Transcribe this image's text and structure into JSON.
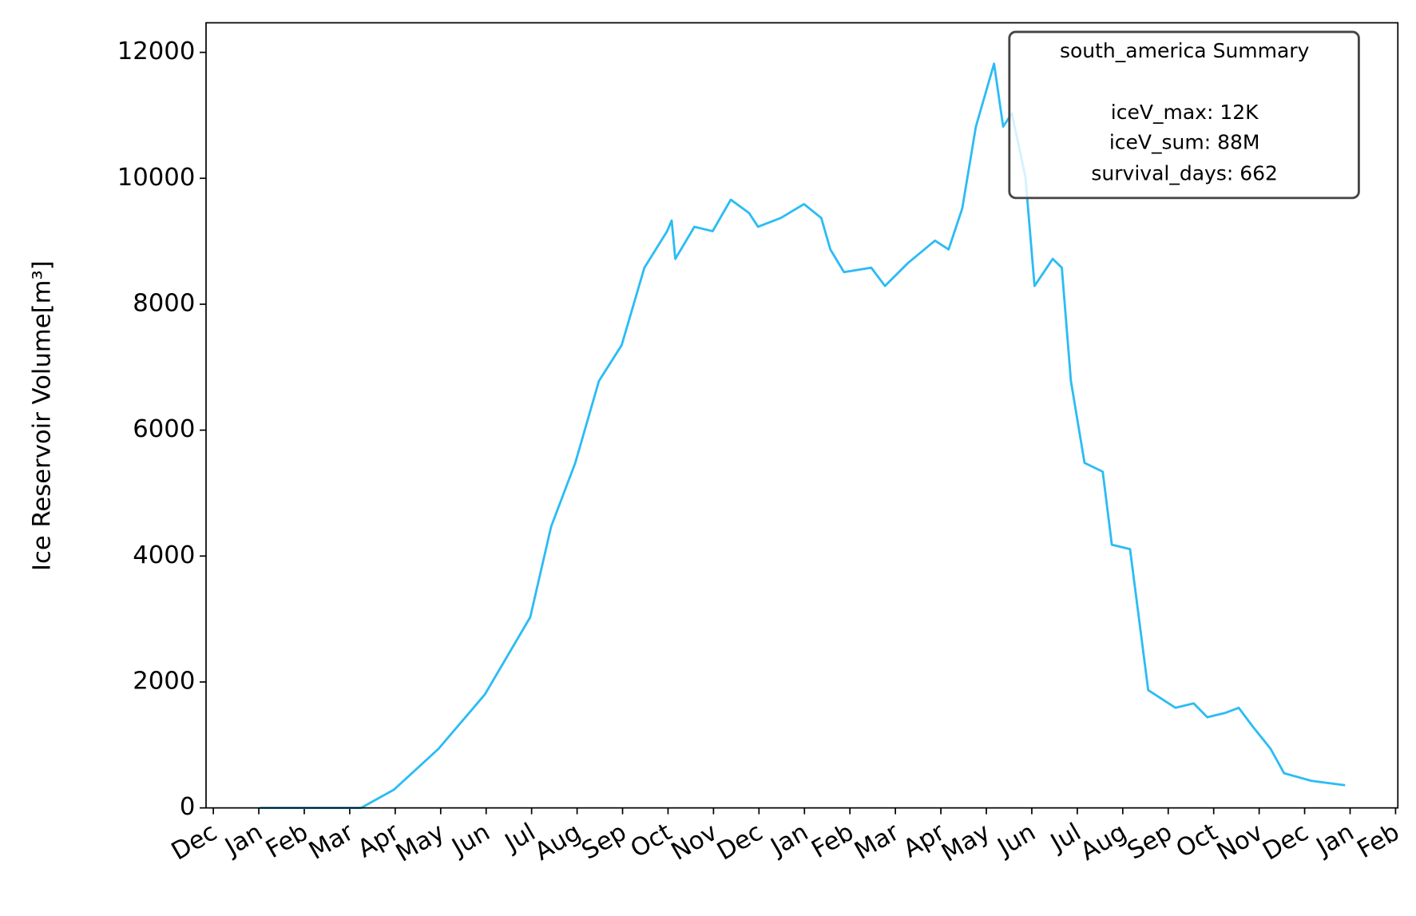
{
  "chart_data": {
    "type": "line",
    "y_label": "Ice Reservoir Volume[m³]",
    "annotation": [
      "south_america Summary",
      "iceV_max: 12K",
      "iceV_sum: 88M",
      "survival_days: 662"
    ],
    "color": "#2bbcf5",
    "x": [
      1.02,
      3.25,
      3.97,
      4.95,
      5.97,
      6.97,
      7.43,
      7.96,
      8.48,
      8.98,
      9.48,
      9.98,
      10.08,
      10.16,
      10.58,
      10.98,
      11.38,
      11.78,
      11.98,
      12.48,
      12.99,
      13.37,
      13.57,
      13.87,
      14.47,
      14.77,
      15.27,
      15.87,
      16.17,
      16.47,
      16.77,
      17.17,
      17.37,
      17.56,
      17.86,
      18.06,
      18.46,
      18.66,
      18.86,
      19.16,
      19.56,
      19.76,
      20.16,
      20.56,
      21.16,
      21.56,
      21.86,
      22.26,
      22.55,
      22.85,
      23.25,
      23.55,
      24.15,
      24.89
    ],
    "values": [
      0,
      0,
      288,
      937,
      1800,
      3030,
      4470,
      5480,
      6780,
      7350,
      8580,
      9160,
      9330,
      8720,
      9230,
      9160,
      9660,
      9450,
      9230,
      9370,
      9590,
      9370,
      8870,
      8510,
      8580,
      8290,
      8650,
      9010,
      8870,
      9520,
      10820,
      11820,
      10820,
      11030,
      10020,
      8290,
      8720,
      8580,
      6780,
      5480,
      5340,
      4180,
      4110,
      1870,
      1590,
      1660,
      1440,
      1510,
      1590,
      1300,
      940,
      550,
      430,
      360
    ],
    "xlim": [
      -0.16,
      26.05
    ],
    "xticks": [
      {
        "value": 0,
        "label": "Dec"
      },
      {
        "value": 1,
        "label": "Jan"
      },
      {
        "value": 2,
        "label": "Feb"
      },
      {
        "value": 3,
        "label": "Mar"
      },
      {
        "value": 4,
        "label": "Apr"
      },
      {
        "value": 5,
        "label": "May"
      },
      {
        "value": 6,
        "label": "Jun"
      },
      {
        "value": 7,
        "label": "Jul"
      },
      {
        "value": 8,
        "label": "Aug"
      },
      {
        "value": 9,
        "label": "Sep"
      },
      {
        "value": 10,
        "label": "Oct"
      },
      {
        "value": 11,
        "label": "Nov"
      },
      {
        "value": 12,
        "label": "Dec"
      },
      {
        "value": 13,
        "label": "Jan"
      },
      {
        "value": 14,
        "label": "Feb"
      },
      {
        "value": 15,
        "label": "Mar"
      },
      {
        "value": 16,
        "label": "Apr"
      },
      {
        "value": 17,
        "label": "May"
      },
      {
        "value": 18,
        "label": "Jun"
      },
      {
        "value": 19,
        "label": "Jul"
      },
      {
        "value": 20,
        "label": "Aug"
      },
      {
        "value": 21,
        "label": "Sep"
      },
      {
        "value": 22,
        "label": "Oct"
      },
      {
        "value": 23,
        "label": "Nov"
      },
      {
        "value": 24,
        "label": "Dec"
      },
      {
        "value": 25,
        "label": "Jan"
      },
      {
        "value": 26,
        "label": "Feb"
      }
    ],
    "ylim": [
      0,
      12470
    ],
    "yticks": [
      0,
      2000,
      4000,
      6000,
      8000,
      10000,
      12000
    ],
    "grid": false
  }
}
